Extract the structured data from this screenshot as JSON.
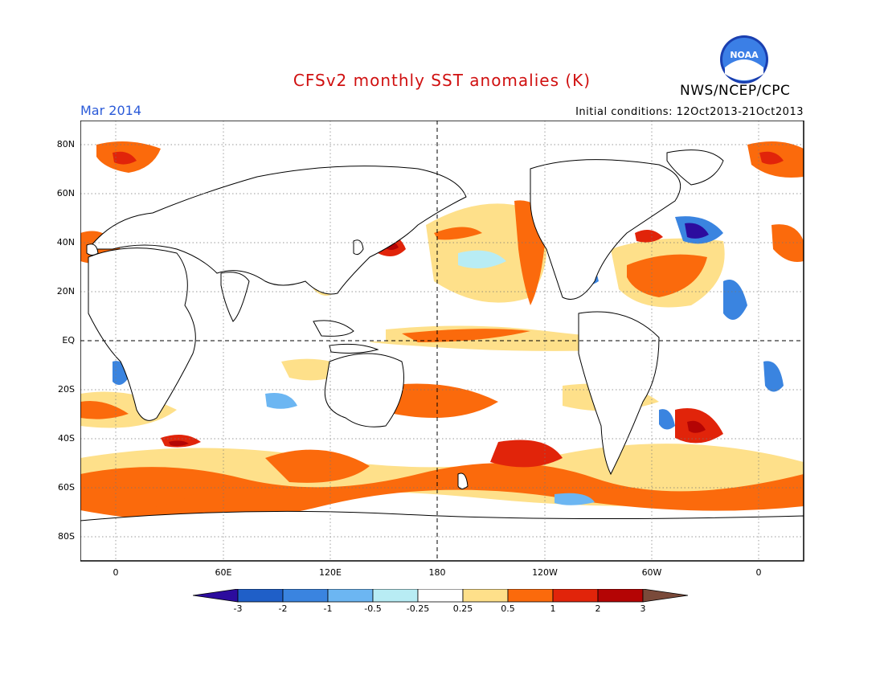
{
  "title": "CFSv2 monthly SST anomalies (K)",
  "agency": "NWS/NCEP/CPC",
  "logo_text": "NOAA",
  "period": "Mar 2014",
  "initial_conditions": "Initial conditions: 12Oct2013-21Oct2013",
  "lat_labels": [
    "80N",
    "60N",
    "40N",
    "20N",
    "EQ",
    "20S",
    "40S",
    "60S",
    "80S"
  ],
  "lon_labels": [
    "0",
    "60E",
    "120E",
    "180",
    "120W",
    "60W",
    "0"
  ],
  "colorbar": {
    "labels": [
      "-3",
      "-2",
      "-1",
      "-0.5",
      "-0.25",
      "0.25",
      "0.5",
      "1",
      "2",
      "3"
    ],
    "colors": [
      "#2c0c9e",
      "#1f5fc8",
      "#3a84e0",
      "#6cb6f2",
      "#b8ecf4",
      "#ffffff",
      "#fee08a",
      "#fb6a0c",
      "#e1240a",
      "#b40404",
      "#7a4a3a"
    ]
  }
}
